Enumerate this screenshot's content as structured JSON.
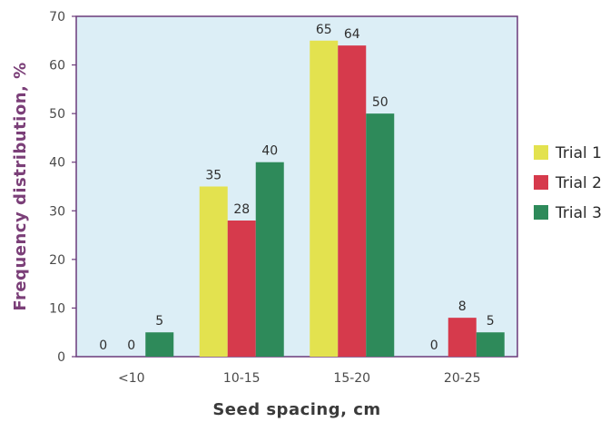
{
  "chart_data": {
    "type": "bar",
    "categories": [
      "<10",
      "10-15",
      "15-20",
      "20-25"
    ],
    "series": [
      {
        "name": "Trial 1",
        "color": "#e3e24f",
        "values": [
          0,
          35,
          65,
          0
        ]
      },
      {
        "name": "Trial 2",
        "color": "#d63a4c",
        "values": [
          0,
          28,
          64,
          8
        ]
      },
      {
        "name": "Trial 3",
        "color": "#2e8a5a",
        "values": [
          5,
          40,
          50,
          5
        ]
      }
    ],
    "data_labels": [
      [
        "0",
        "35",
        "65",
        "0"
      ],
      [
        "0",
        "28",
        "64",
        "8"
      ],
      [
        "5",
        "40",
        "50",
        "5"
      ]
    ],
    "xlabel": "Seed spacing, cm",
    "ylabel": "Frequency distribution, %",
    "ylim": [
      0,
      70
    ],
    "yticks": [
      0,
      10,
      20,
      30,
      40,
      50,
      60,
      70
    ],
    "grid": false,
    "legend_placement": "right",
    "plot_background": "#dceef6",
    "frame_color": "#6a3a7a",
    "axis_title_color": "#7b3f78"
  }
}
